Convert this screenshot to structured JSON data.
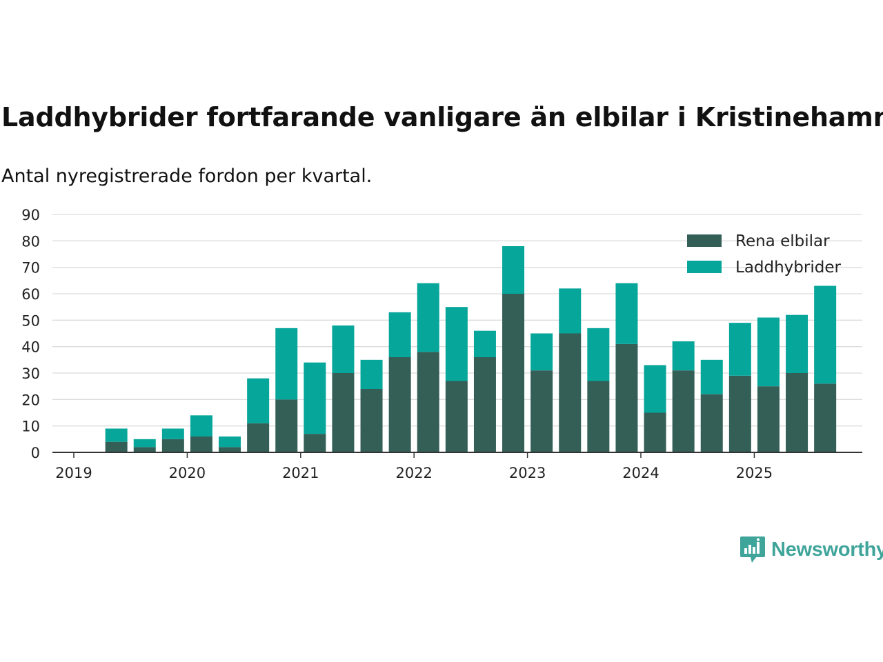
{
  "title": "Laddhybrider fortfarande vanligare än elbilar i Kristinehamn",
  "subtitle": "Antal nyregistrerade fordon per kvartal.",
  "brand": "Newsworthy",
  "colors": {
    "elbilar": "#335f56",
    "laddhybrider": "#06a69b",
    "grid": "#dcdcdc",
    "axis": "#333333"
  },
  "chart_data": {
    "type": "bar",
    "stacked": true,
    "title": "Laddhybrider fortfarande vanligare än elbilar i Kristinehamn",
    "subtitle": "Antal nyregistrerade fordon per kvartal.",
    "xlabel": "",
    "ylabel": "",
    "ylim": [
      0,
      90
    ],
    "yticks": [
      "0",
      "10",
      "20",
      "30",
      "40",
      "50",
      "60",
      "70",
      "80",
      "90"
    ],
    "xticks": [
      "2019",
      "2020",
      "2021",
      "2022",
      "2023",
      "2024",
      "2025"
    ],
    "categories": [
      "2019 Q1",
      "2019 Q2",
      "2019 Q3",
      "2019 Q4",
      "2020 Q1",
      "2020 Q2",
      "2020 Q3",
      "2020 Q4",
      "2021 Q1",
      "2021 Q2",
      "2021 Q3",
      "2021 Q4",
      "2022 Q1",
      "2022 Q2",
      "2022 Q3",
      "2022 Q4",
      "2023 Q1",
      "2023 Q2",
      "2023 Q3",
      "2023 Q4",
      "2024 Q1",
      "2024 Q2",
      "2024 Q3",
      "2024 Q4",
      "2025 Q1",
      "2025 Q2",
      "2025 Q3"
    ],
    "legend_position": "top-right",
    "grid": true,
    "series": [
      {
        "name": "Rena elbilar",
        "values": [
          0,
          4,
          2,
          5,
          6,
          2,
          11,
          20,
          7,
          30,
          24,
          36,
          38,
          27,
          36,
          60,
          31,
          45,
          27,
          41,
          15,
          31,
          22,
          29,
          25,
          30,
          26
        ]
      },
      {
        "name": "Laddhybrider",
        "values": [
          0,
          5,
          3,
          4,
          8,
          4,
          17,
          27,
          27,
          18,
          11,
          17,
          26,
          28,
          10,
          18,
          14,
          17,
          20,
          23,
          18,
          11,
          13,
          20,
          26,
          22,
          37
        ]
      }
    ]
  }
}
